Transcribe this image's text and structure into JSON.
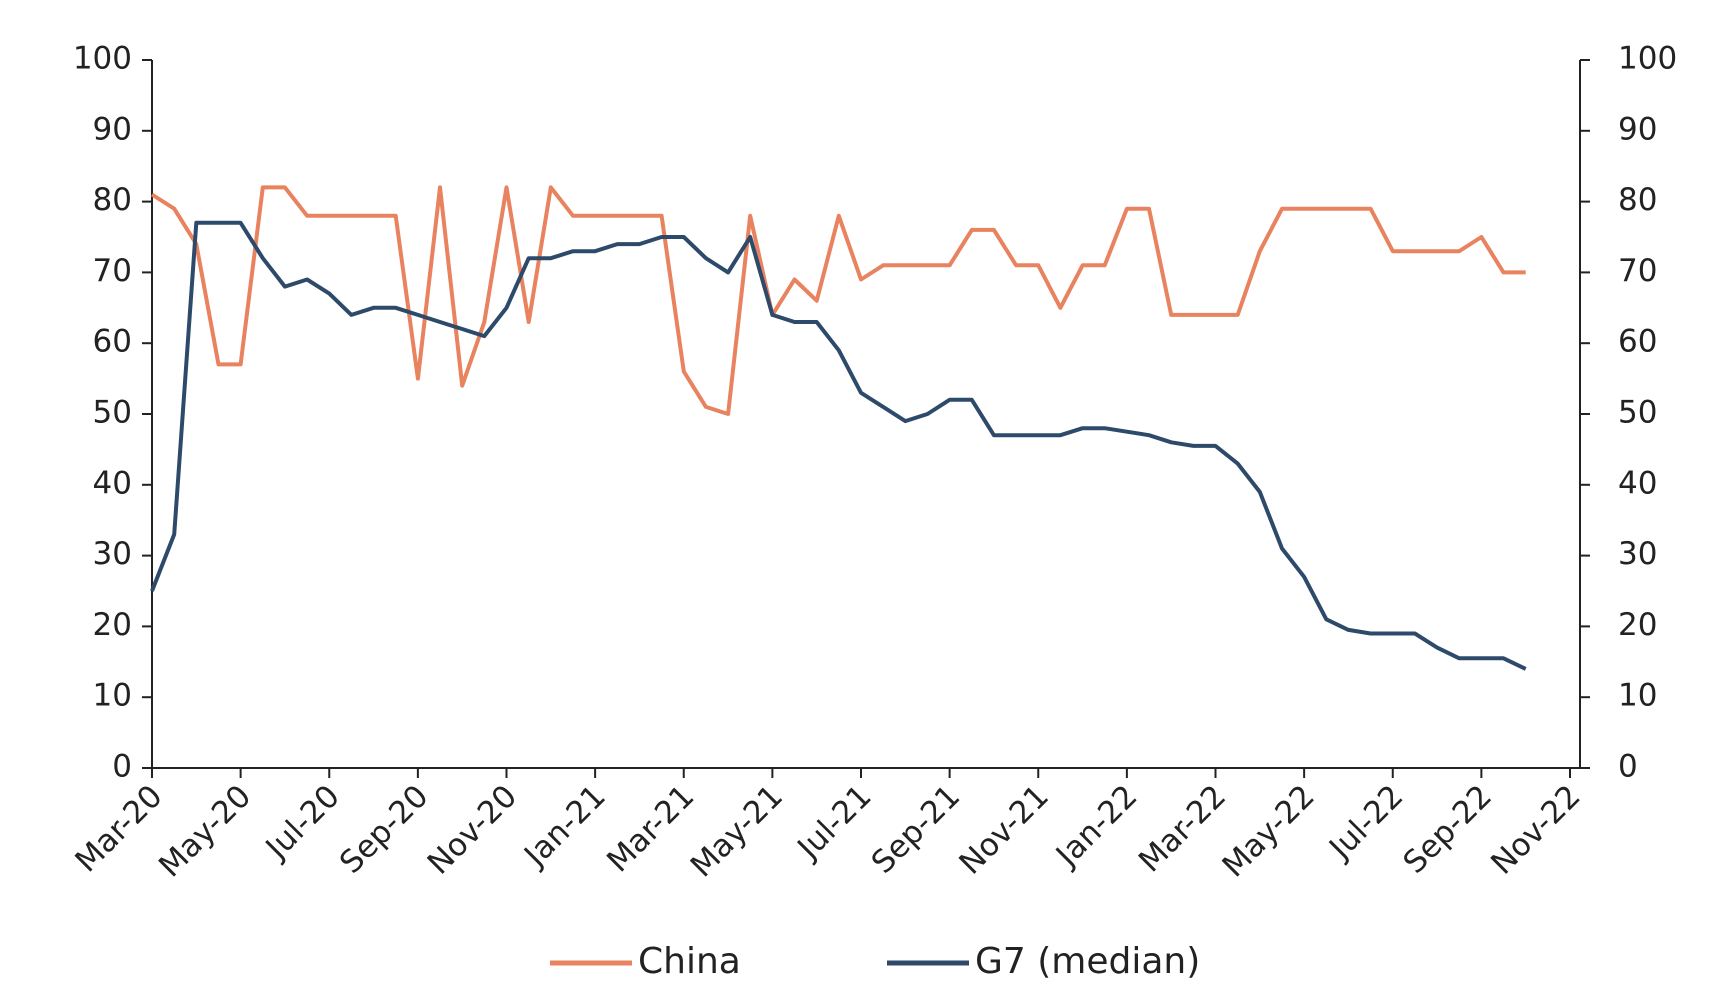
{
  "chart_data": {
    "type": "line",
    "categories": [
      "Mar-20",
      null,
      null,
      null,
      "May-20",
      null,
      null,
      null,
      "Jul-20",
      null,
      null,
      null,
      "Sep-20",
      null,
      null,
      null,
      "Nov-20",
      null,
      null,
      null,
      "Jan-21",
      null,
      null,
      null,
      "Mar-21",
      null,
      null,
      null,
      "May-21",
      null,
      null,
      null,
      "Jul-21",
      null,
      null,
      null,
      "Sep-21",
      null,
      null,
      null,
      "Nov-21",
      null,
      null,
      null,
      "Jan-22",
      null,
      null,
      null,
      "Mar-22",
      null,
      null,
      null,
      "May-22",
      null,
      null,
      null,
      "Jul-22",
      null,
      null,
      null,
      "Sep-22",
      null,
      null,
      null,
      "Nov-22"
    ],
    "series": [
      {
        "name": "China",
        "color": "#e8825f",
        "values": [
          81,
          79,
          74,
          57,
          57,
          82,
          82,
          78,
          78,
          78,
          78,
          78,
          55,
          82,
          54,
          63,
          82,
          63,
          82,
          78,
          78,
          78,
          78,
          78,
          56,
          51,
          50,
          78,
          64,
          69,
          66,
          78,
          69,
          71,
          71,
          71,
          71,
          76,
          76,
          71,
          71,
          65,
          71,
          71,
          79,
          79,
          64,
          64,
          64,
          64,
          73,
          79,
          79,
          79,
          79,
          79,
          73,
          73,
          73,
          73,
          75,
          70,
          70,
          null,
          null
        ]
      },
      {
        "name": "G7 (median)",
        "color": "#2e4a6b",
        "values": [
          25,
          33,
          77,
          77,
          77,
          72,
          68,
          69,
          67,
          64,
          65,
          65,
          64,
          63,
          62,
          61,
          65,
          72,
          72,
          73,
          73,
          74,
          74,
          75,
          75,
          72,
          70,
          75,
          64,
          63,
          63,
          59,
          53,
          51,
          49,
          50,
          52,
          52,
          47,
          47,
          47,
          47,
          48,
          48,
          47.5,
          47,
          46,
          45.5,
          45.5,
          43,
          39,
          31,
          27,
          21,
          19.5,
          19,
          19,
          19,
          17,
          15.5,
          15.5,
          15.5,
          14,
          null,
          null
        ]
      }
    ],
    "ylim": [
      0,
      100
    ],
    "yticks": [
      0,
      10,
      20,
      30,
      40,
      50,
      60,
      70,
      80,
      90,
      100
    ],
    "y2lim": [
      0,
      100
    ],
    "y2ticks": [
      0,
      10,
      20,
      30,
      40,
      50,
      60,
      70,
      80,
      90,
      100
    ],
    "legend": "bottom"
  }
}
